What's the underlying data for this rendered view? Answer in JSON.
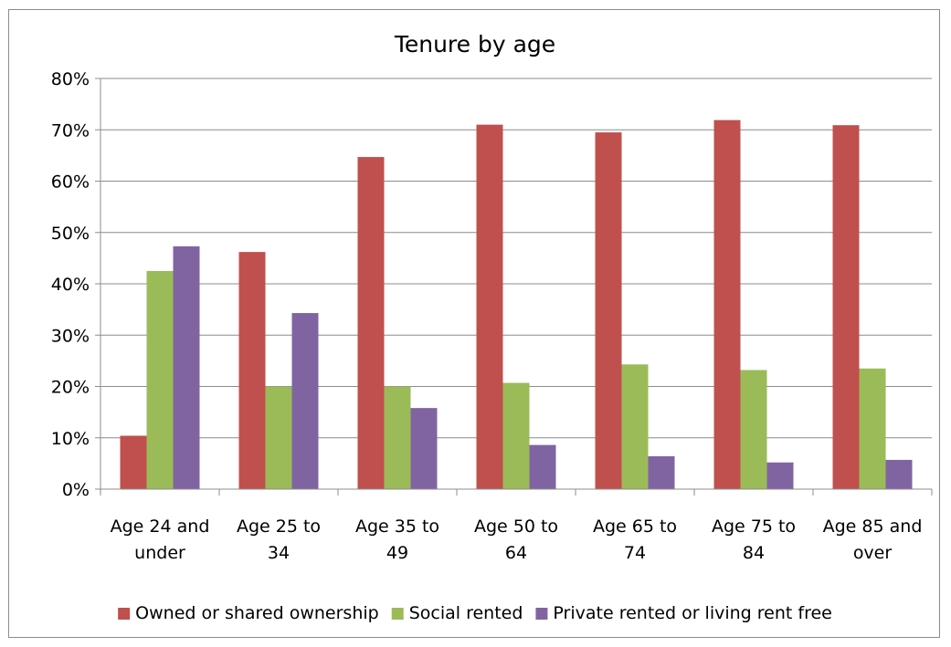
{
  "chart_data": {
    "type": "bar",
    "title": "Tenure by age",
    "xlabel": "",
    "ylabel": "",
    "ylim": [
      0,
      0.8
    ],
    "yticks": [
      0,
      0.1,
      0.2,
      0.3,
      0.4,
      0.5,
      0.6,
      0.7,
      0.8
    ],
    "ytick_labels": [
      "0%",
      "10%",
      "20%",
      "30%",
      "40%",
      "50%",
      "60%",
      "70%",
      "80%"
    ],
    "grid": "horizontal",
    "legend_position": "bottom",
    "categories": [
      [
        "Age 24 and",
        "under"
      ],
      [
        "Age 25 to",
        "34"
      ],
      [
        "Age 35 to",
        "49"
      ],
      [
        "Age 50 to",
        "64"
      ],
      [
        "Age 65 to",
        "74"
      ],
      [
        "Age 75 to",
        "84"
      ],
      [
        "Age 85 and",
        "over"
      ]
    ],
    "series": [
      {
        "name": "Owned or shared ownership",
        "color": "#c0504d",
        "values": [
          0.104,
          0.462,
          0.647,
          0.71,
          0.695,
          0.719,
          0.709
        ]
      },
      {
        "name": "Social rented",
        "color": "#9bbb59",
        "values": [
          0.425,
          0.2,
          0.2,
          0.207,
          0.243,
          0.232,
          0.235
        ]
      },
      {
        "name": "Private rented or living rent free",
        "color": "#8064a2",
        "values": [
          0.473,
          0.343,
          0.158,
          0.086,
          0.064,
          0.052,
          0.057
        ]
      }
    ]
  }
}
